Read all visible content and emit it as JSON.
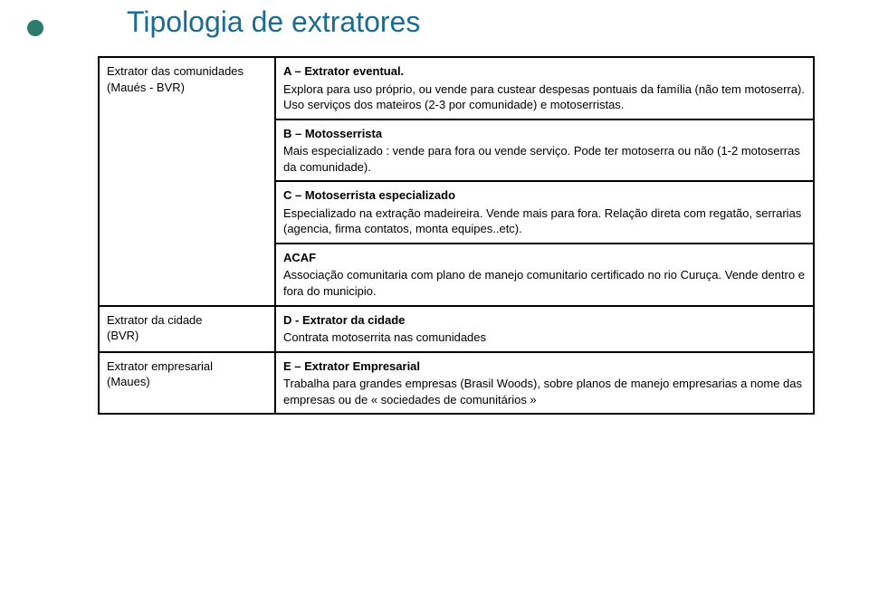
{
  "colors": {
    "bullet": "#2c7b6f",
    "title": "#1a6b8f",
    "text": "#000000",
    "border": "#000000",
    "background": "#ffffff"
  },
  "title": "Tipologia de extratores",
  "rows": [
    {
      "left_lines": [
        "Extrator das comunidades",
        "(Maués - BVR)"
      ],
      "blocks": [
        {
          "heading": "A – Extrator eventual.",
          "body": "Explora para uso próprio, ou vende para custear despesas pontuais da família (não tem motoserra). Uso serviços dos mateiros (2-3 por comunidade) e motoserristas."
        },
        {
          "heading": "B – Motosserrista",
          "body": "Mais especializado : vende para fora ou vende serviço. Pode ter motoserra ou não (1-2 motoserras da comunidade)."
        },
        {
          "heading": "C – Motoserrista especializado",
          "body": "Especializado na extração madeireira. Vende mais para fora. Relação direta com regatão, serrarias (agencia, firma contatos, monta equipes..etc)."
        },
        {
          "heading": "ACAF",
          "body": "Associação comunitaria com plano de manejo comunitario certificado no rio Curuça. Vende dentro e fora do municipio."
        }
      ]
    },
    {
      "left_lines": [
        "Extrator da cidade",
        "(BVR)"
      ],
      "blocks": [
        {
          "heading": "D - Extrator da cidade",
          "body": "Contrata motoserrita nas comunidades"
        }
      ]
    },
    {
      "left_lines": [
        "Extrator empresarial",
        "(Maues)"
      ],
      "blocks": [
        {
          "heading": "E – Extrator Empresarial",
          "body": "Trabalha para grandes empresas (Brasil Woods), sobre planos de manejo empresarias a nome das empresas ou de  « sociedades de comunitários »"
        }
      ]
    }
  ]
}
